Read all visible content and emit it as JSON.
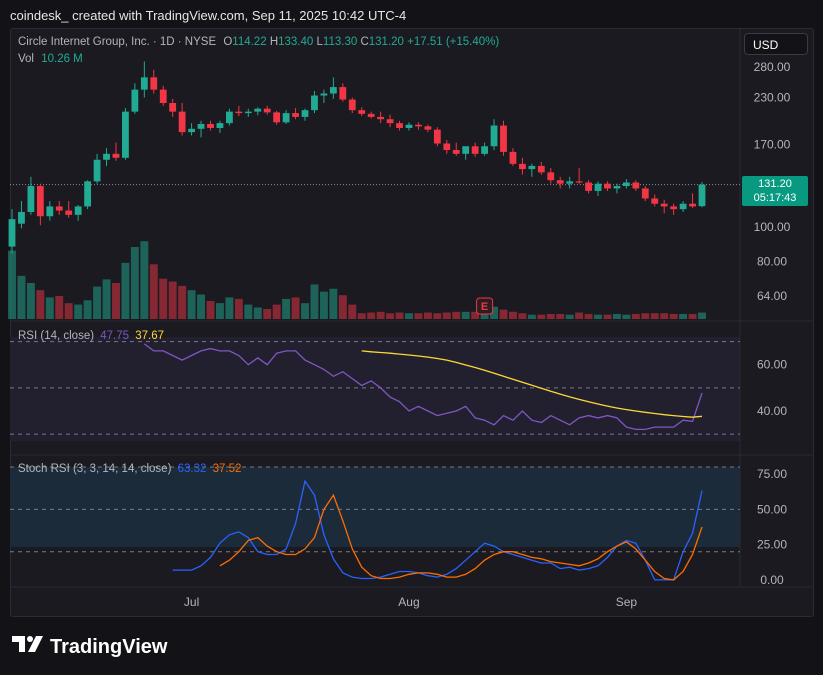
{
  "header": {
    "caption": "coindesk_ created with TradingView.com, Sep 11, 2025 10:42 UTC-4"
  },
  "currency_button": "USD",
  "main_legend": {
    "symbol": "Circle Internet Group, Inc. · 1D · NYSE",
    "o_label": "O",
    "o_value": "114.22",
    "h_label": "H",
    "h_value": "133.40",
    "l_label": "L",
    "l_value": "113.30",
    "c_label": "C",
    "c_value": "131.20",
    "change": "+17.51 (+15.40%)",
    "vol_label": "Vol",
    "vol_value": "10.26 M"
  },
  "price_box": {
    "price": "131.20",
    "countdown": "05:17:43"
  },
  "rsi_legend": {
    "name": "RSI (14, close)",
    "value1": "47.75",
    "value2": "37.67"
  },
  "stoch_legend": {
    "name": "Stoch RSI (3, 3, 14, 14, close)",
    "value1": "63.32",
    "value2": "37.52"
  },
  "earnings_marker": "E",
  "logo_text": "TradingView",
  "colors": {
    "up": "#22ab94",
    "down": "#f23645",
    "rsi": "#7e57c2",
    "rsi_ma": "#fdd835",
    "stoch_k": "#2962ff",
    "stoch_d": "#ff6d00"
  },
  "chart_data": [
    {
      "type": "candlestick",
      "title": "Circle Internet Group, Inc. · 1D · NYSE",
      "scale": "log",
      "yticks": [
        64,
        80,
        100,
        131.2,
        170,
        230,
        280
      ],
      "ytick_labels": [
        "64.00",
        "80.00",
        "100.00",
        "",
        "170.00",
        "230.00",
        "280.00"
      ],
      "xtick_labels": [
        "Jul",
        "Aug",
        "Sep"
      ],
      "ohlc": [
        [
          88,
          112,
          84,
          105
        ],
        [
          102,
          118,
          99,
          110
        ],
        [
          110,
          138,
          108,
          130
        ],
        [
          130,
          132,
          101,
          107
        ],
        [
          107,
          118,
          104,
          114
        ],
        [
          114,
          118,
          108,
          111
        ],
        [
          111,
          118,
          106,
          108
        ],
        [
          108,
          115,
          104,
          114
        ],
        [
          114,
          135,
          112,
          134
        ],
        [
          134,
          160,
          132,
          154
        ],
        [
          154,
          166,
          148,
          160
        ],
        [
          160,
          172,
          153,
          156
        ],
        [
          156,
          215,
          154,
          210
        ],
        [
          210,
          252,
          207,
          242
        ],
        [
          242,
          290,
          230,
          262
        ],
        [
          262,
          275,
          236,
          242
        ],
        [
          242,
          248,
          218,
          222
        ],
        [
          222,
          228,
          203,
          210
        ],
        [
          210,
          222,
          180,
          184
        ],
        [
          184,
          195,
          180,
          188
        ],
        [
          188,
          198,
          178,
          194
        ],
        [
          194,
          198,
          186,
          189
        ],
        [
          189,
          198,
          183,
          195
        ],
        [
          195,
          214,
          192,
          210
        ],
        [
          210,
          218,
          204,
          208
        ],
        [
          208,
          214,
          203,
          210
        ],
        [
          210,
          216,
          205,
          214
        ],
        [
          214,
          218,
          206,
          209
        ],
        [
          209,
          211,
          193,
          196
        ],
        [
          196,
          212,
          194,
          208
        ],
        [
          208,
          215,
          200,
          203
        ],
        [
          203,
          214,
          198,
          212
        ],
        [
          212,
          240,
          208,
          233
        ],
        [
          233,
          242,
          222,
          236
        ],
        [
          236,
          262,
          228,
          246
        ],
        [
          246,
          252,
          224,
          227
        ],
        [
          227,
          230,
          208,
          212
        ],
        [
          212,
          216,
          204,
          207
        ],
        [
          207,
          210,
          201,
          203
        ],
        [
          203,
          210,
          195,
          200
        ],
        [
          200,
          206,
          190,
          195
        ],
        [
          195,
          198,
          186,
          189
        ],
        [
          189,
          196,
          186,
          193
        ],
        [
          193,
          196,
          187,
          191
        ],
        [
          191,
          193,
          184,
          187
        ],
        [
          187,
          190,
          168,
          171
        ],
        [
          171,
          175,
          160,
          164
        ],
        [
          164,
          172,
          158,
          160
        ],
        [
          160,
          168,
          154,
          168
        ],
        [
          168,
          172,
          157,
          160
        ],
        [
          160,
          172,
          158,
          168
        ],
        [
          168,
          200,
          164,
          192
        ],
        [
          192,
          198,
          158,
          162
        ],
        [
          162,
          166,
          148,
          150
        ],
        [
          150,
          156,
          140,
          145
        ],
        [
          145,
          150,
          138,
          148
        ],
        [
          148,
          152,
          140,
          142
        ],
        [
          142,
          146,
          132,
          135
        ],
        [
          135,
          138,
          128,
          132
        ],
        [
          132,
          138,
          128,
          134
        ],
        [
          134,
          146,
          132,
          133
        ],
        [
          133,
          135,
          124,
          126
        ],
        [
          126,
          134,
          122,
          132
        ],
        [
          132,
          134,
          126,
          128
        ],
        [
          128,
          132,
          124,
          130
        ],
        [
          130,
          136,
          128,
          133
        ],
        [
          133,
          135,
          126,
          128
        ],
        [
          128,
          130,
          118,
          120
        ],
        [
          120,
          123,
          114,
          116
        ],
        [
          116,
          119,
          109,
          114
        ],
        [
          114,
          116,
          108,
          112
        ],
        [
          112,
          118,
          110,
          116
        ],
        [
          116,
          124,
          113,
          114
        ],
        [
          114.22,
          133.4,
          113.3,
          131.2
        ]
      ],
      "volume_relative": [
        0.95,
        0.6,
        0.5,
        0.4,
        0.3,
        0.32,
        0.22,
        0.2,
        0.26,
        0.45,
        0.55,
        0.5,
        0.78,
        1.0,
        1.08,
        0.76,
        0.56,
        0.52,
        0.46,
        0.4,
        0.34,
        0.25,
        0.22,
        0.3,
        0.28,
        0.2,
        0.16,
        0.14,
        0.2,
        0.28,
        0.3,
        0.22,
        0.48,
        0.38,
        0.42,
        0.33,
        0.2,
        0.08,
        0.09,
        0.1,
        0.08,
        0.09,
        0.08,
        0.08,
        0.09,
        0.08,
        0.09,
        0.1,
        0.1,
        0.1,
        0.13,
        0.17,
        0.13,
        0.1,
        0.08,
        0.06,
        0.06,
        0.07,
        0.07,
        0.06,
        0.09,
        0.07,
        0.06,
        0.06,
        0.07,
        0.06,
        0.07,
        0.08,
        0.08,
        0.08,
        0.07,
        0.07,
        0.07,
        0.09
      ]
    },
    {
      "type": "line",
      "title": "RSI (14, close)",
      "ylim": [
        27,
        72
      ],
      "yticks": [
        40,
        60
      ],
      "ytick_labels": [
        "40.00",
        "60.00"
      ],
      "series": [
        {
          "name": "RSI",
          "values": [
            69,
            66,
            66,
            64,
            62,
            64,
            66,
            67,
            66,
            66,
            64,
            60,
            63,
            60,
            65,
            66,
            66,
            62,
            60,
            58,
            55,
            57,
            54,
            51,
            53,
            50,
            46,
            44,
            40,
            42,
            40,
            38,
            39,
            40,
            42,
            37,
            36,
            34,
            38,
            36,
            40,
            36,
            35,
            38,
            36,
            34,
            37,
            38,
            37,
            38,
            37,
            33,
            32,
            32,
            33,
            33,
            33,
            36,
            35.5,
            47.75
          ]
        },
        {
          "name": "RSI MA",
          "values": [
            66,
            65.6,
            65.3,
            65,
            64.6,
            64.2,
            63.8,
            63.3,
            62.7,
            62,
            61,
            59.9,
            58.8,
            57.6,
            56.3,
            55,
            53.7,
            52.4,
            51.1,
            49.8,
            48.5,
            47.3,
            46.1,
            45,
            44,
            43,
            42.1,
            41.3,
            40.6,
            40,
            39.4,
            38.9,
            38.4,
            38,
            37.6,
            37.3,
            37.67
          ]
        }
      ]
    },
    {
      "type": "line",
      "title": "Stoch RSI (3, 3, 14, 14, close)",
      "ylim": [
        -5,
        80
      ],
      "yticks": [
        0,
        25,
        50,
        75
      ],
      "ytick_labels": [
        "0.00",
        "25.00",
        "50.00",
        "75.00"
      ],
      "series": [
        {
          "name": "%K",
          "values": [
            7,
            7,
            7,
            10,
            16,
            26,
            32,
            34,
            30,
            20,
            18,
            18,
            22,
            40,
            70,
            60,
            32,
            15,
            5,
            2,
            1,
            1,
            2,
            4,
            6,
            6,
            5,
            3,
            2,
            4,
            8,
            14,
            20,
            26,
            24,
            20,
            18,
            16,
            14,
            12,
            12,
            8,
            9,
            7,
            8,
            10,
            16,
            24,
            28,
            26,
            14,
            0,
            0,
            0,
            20,
            33,
            63.32
          ]
        },
        {
          "name": "%D",
          "values": [
            10,
            14,
            20,
            28,
            30,
            24,
            20,
            18,
            18,
            22,
            30,
            50,
            60,
            42,
            22,
            9,
            3,
            1,
            1,
            2,
            4,
            5,
            5,
            4,
            2,
            2,
            4,
            8,
            14,
            18,
            20,
            20,
            18,
            16,
            15,
            13,
            12,
            11,
            10,
            12,
            15,
            20,
            24,
            27,
            22,
            14,
            6,
            1,
            0,
            6,
            18,
            37.52
          ]
        }
      ]
    }
  ]
}
